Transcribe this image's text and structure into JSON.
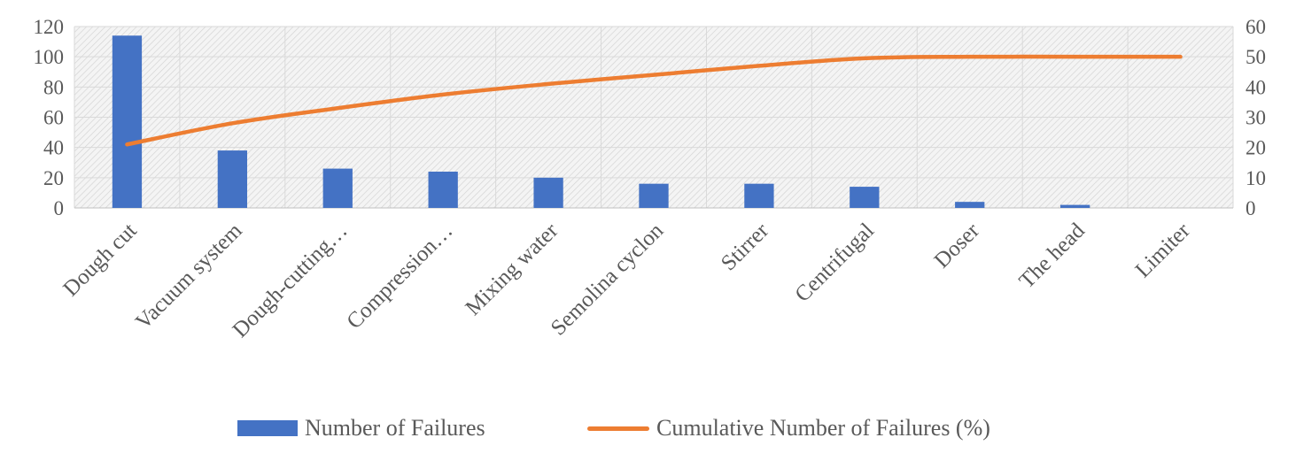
{
  "chart_data": {
    "type": "bar",
    "categories": [
      "Dough cut",
      "Vacuum system",
      "Dough-cutting…",
      "Compression…",
      "Mixing water",
      "Semolina cyclon",
      "Stirrer",
      "Centrifugal",
      "Doser",
      "The head",
      "Limiter"
    ],
    "series": [
      {
        "name": "Number of Failures",
        "type": "bar",
        "axis": "left",
        "color": "#4472C4",
        "values": [
          114,
          38,
          26,
          24,
          20,
          16,
          16,
          14,
          4,
          2,
          0
        ]
      },
      {
        "name": "Cumulative Number of Failures (%)",
        "type": "line",
        "axis": "right",
        "color": "#ED7D31",
        "values": [
          21,
          28,
          33,
          37.5,
          41,
          44,
          47,
          49.5,
          50,
          50,
          50
        ]
      }
    ],
    "ylim": [
      0,
      120
    ],
    "y_ticks": [
      "0",
      "20",
      "40",
      "60",
      "80",
      "100",
      "120"
    ],
    "y2lim": [
      0,
      60
    ],
    "y2_ticks": [
      "0",
      "10",
      "20",
      "30",
      "40",
      "50",
      "60"
    ],
    "grid": true,
    "plot_background": "hatched-grey",
    "legend_position": "bottom"
  },
  "legend": {
    "bar_label": "Number of Failures",
    "line_label": "Cumulative Number of Failures (%)",
    "bar_color": "#4472C4",
    "line_color": "#ED7D31"
  }
}
